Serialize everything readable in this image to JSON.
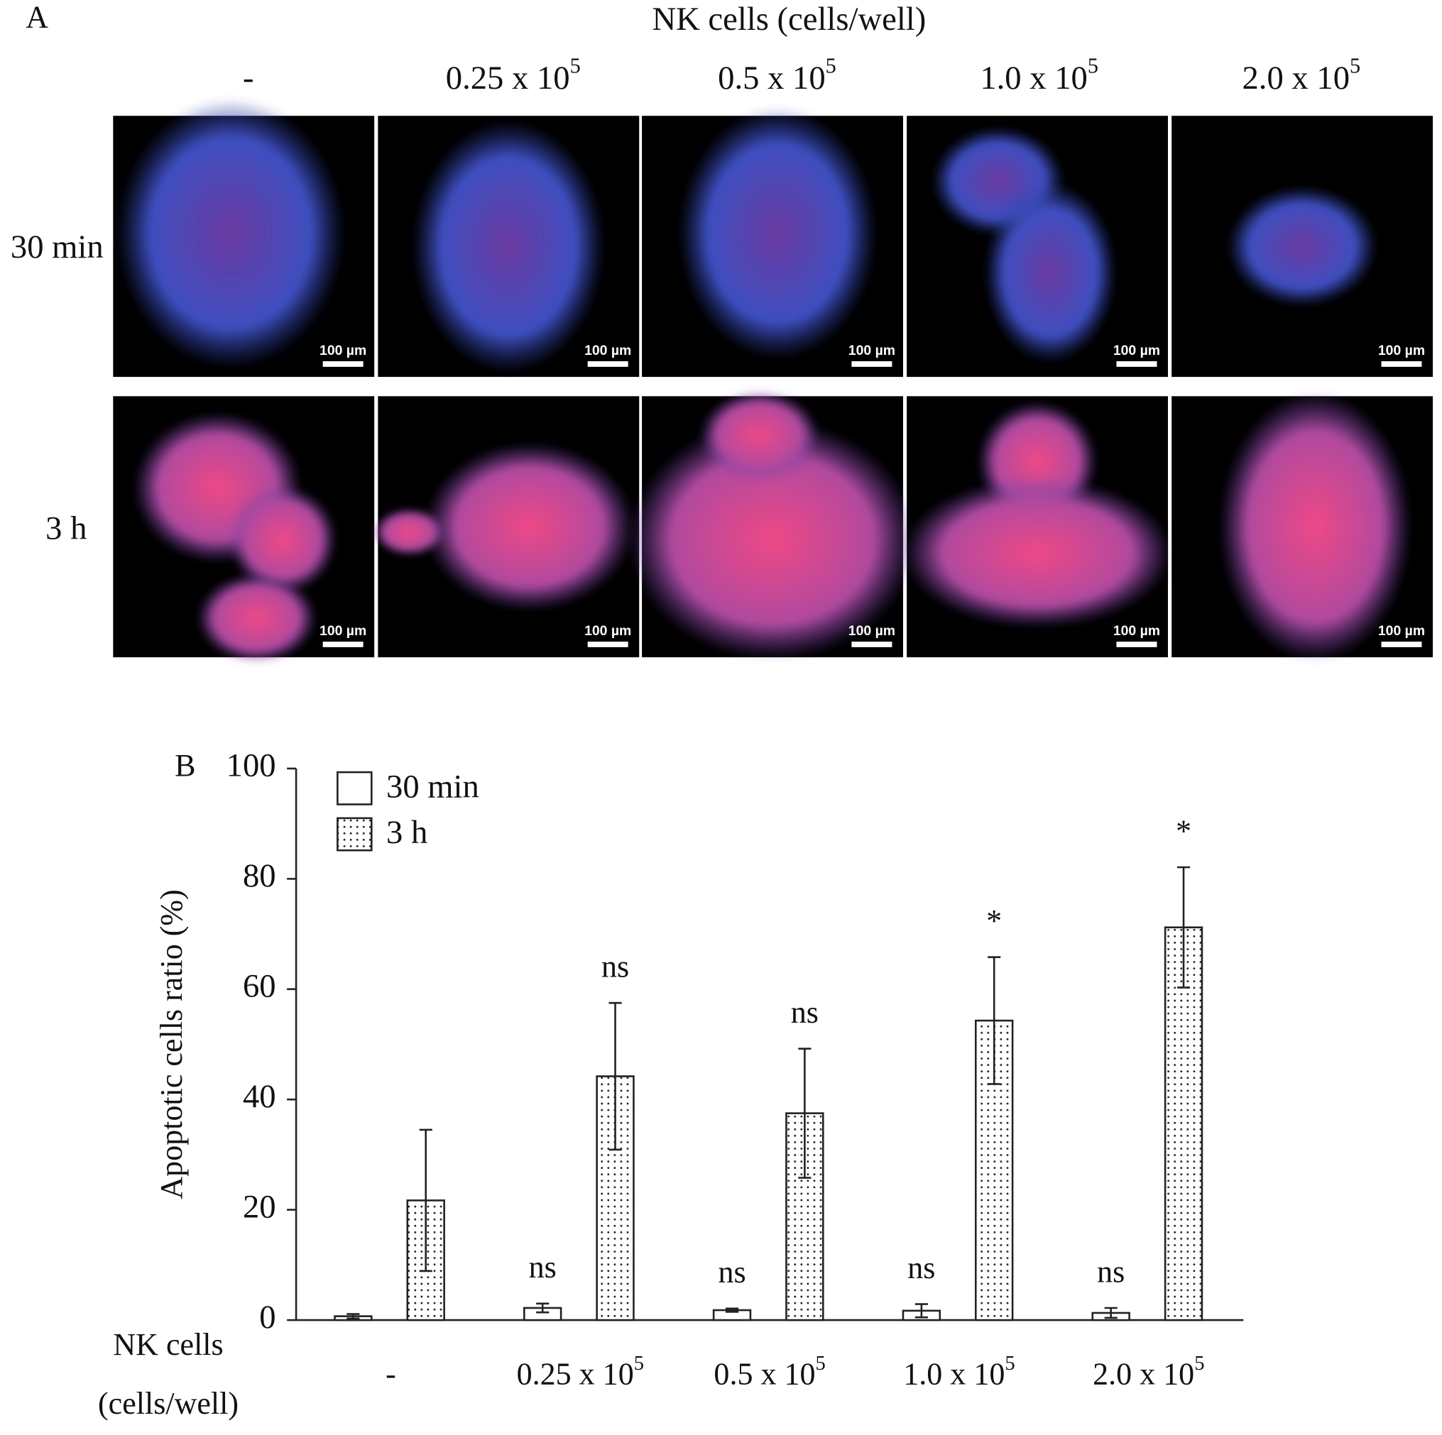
{
  "panel_a": {
    "label": "A",
    "title": "NK cells (cells/well)",
    "columns": [
      {
        "text": "-"
      },
      {
        "text": "0.25 x 10",
        "sup": "5"
      },
      {
        "text": "0.5 x 10",
        "sup": "5"
      },
      {
        "text": "1.0 x 10",
        "sup": "5"
      },
      {
        "text": "2.0 x 10",
        "sup": "5"
      }
    ],
    "rows": [
      "30 min",
      "3 h"
    ],
    "scale_bar": "100 µm"
  },
  "chart_data": {
    "type": "bar",
    "panel_label": "B",
    "ylabel": "Apoptotic cells ratio (%)",
    "xlabel": [
      "NK cells",
      "(cells/well)"
    ],
    "categories": [
      "-",
      "0.25 x 10",
      "0.5 x 10",
      "1.0 x 10",
      "2.0 x 10"
    ],
    "category_exponents": [
      null,
      "5",
      "5",
      "5",
      "5"
    ],
    "series": [
      {
        "name": "30 min",
        "color": "#ffffff",
        "pattern": "none",
        "values": [
          0.7,
          2.2,
          1.8,
          1.7,
          1.3
        ],
        "errors": [
          0.4,
          0.8,
          0.3,
          1.2,
          0.9
        ],
        "annotations": [
          null,
          "ns",
          "ns",
          "ns",
          "ns"
        ]
      },
      {
        "name": "3 h",
        "color": "#ffffff",
        "pattern": "dots",
        "values": [
          21.7,
          44.2,
          37.5,
          54.3,
          71.2
        ],
        "errors": [
          12.8,
          13.3,
          11.7,
          11.5,
          10.9
        ],
        "annotations": [
          null,
          "ns",
          "ns",
          "*",
          "*"
        ]
      }
    ],
    "ylim": [
      0,
      100
    ],
    "yticks": [
      0,
      20,
      40,
      60,
      80,
      100
    ],
    "grid": false,
    "legend": "upper left"
  }
}
